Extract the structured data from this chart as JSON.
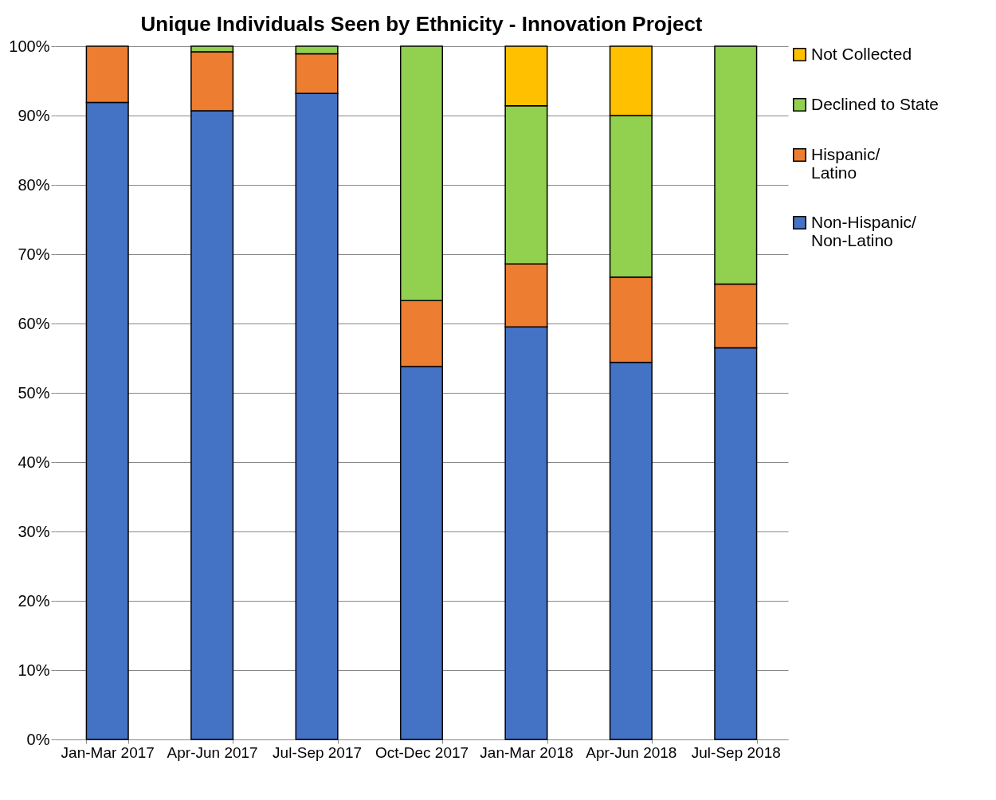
{
  "chart_data": {
    "type": "bar",
    "title": "Unique Individuals Seen by Ethnicity - Innovation Project",
    "stacked": true,
    "categories": [
      "Jan-Mar 2017",
      "Apr-Jun 2017",
      "Jul-Sep 2017",
      "Oct-Dec 2017",
      "Jan-Mar 2018",
      "Apr-Jun 2018",
      "Jul-Sep 2018"
    ],
    "series": [
      {
        "name": "Non-Hispanic/Non-Latino",
        "color": "#4472c4",
        "values": [
          91.9,
          90.7,
          93.2,
          53.8,
          59.5,
          54.4,
          56.5
        ]
      },
      {
        "name": "Hispanic/Latino",
        "color": "#ed7d31",
        "values": [
          8.1,
          8.5,
          5.7,
          9.5,
          9.1,
          12.3,
          9.2
        ]
      },
      {
        "name": "Declined to State",
        "color": "#92d050",
        "values": [
          null,
          0.8,
          1.1,
          36.7,
          22.8,
          23.3,
          34.3
        ]
      },
      {
        "name": "Not Collected",
        "color": "#ffc000",
        "values": [
          null,
          null,
          null,
          null,
          8.6,
          10.0,
          null
        ]
      }
    ],
    "ylim": [
      0,
      100
    ],
    "yticks": [
      {
        "value": 0,
        "label": "0%"
      },
      {
        "value": 10,
        "label": "10%"
      },
      {
        "value": 20,
        "label": "20%"
      },
      {
        "value": 30,
        "label": "30%"
      },
      {
        "value": 40,
        "label": "40%"
      },
      {
        "value": 50,
        "label": "50%"
      },
      {
        "value": 60,
        "label": "60%"
      },
      {
        "value": 70,
        "label": "70%"
      },
      {
        "value": 80,
        "label": "80%"
      },
      {
        "value": 90,
        "label": "90%"
      },
      {
        "value": 100,
        "label": "100%"
      }
    ],
    "grid": "y",
    "legend": "right"
  }
}
